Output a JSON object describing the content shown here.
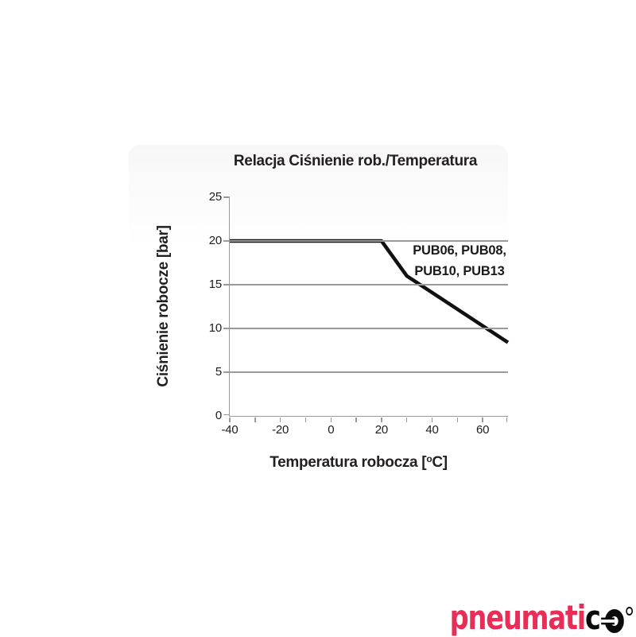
{
  "chart": {
    "title": "Relacja Ciśnienie rob./Temperatura",
    "x_axis_label_pre": "Temperatura robocza [",
    "x_axis_label_sup": "o",
    "x_axis_label_post": "C]",
    "y_axis_label": "Ciśnienie robocze [bar]",
    "annotation_line1": "PUB06, PUB08,",
    "annotation_line2": "PUB10, PUB13"
  },
  "chart_data": {
    "type": "line",
    "title": "Relacja Ciśnienie rob./Temperatura",
    "xlabel": "Temperatura robocza [°C]",
    "ylabel": "Ciśnienie robocze [bar]",
    "xlim": [
      -40,
      70
    ],
    "ylim": [
      0,
      25
    ],
    "x_major_ticks": [
      -40,
      -20,
      0,
      20,
      40,
      60
    ],
    "x_tick_labels": [
      "-40",
      "-20",
      "0",
      "20",
      "40",
      "60"
    ],
    "x_minor_ticks": [
      -40,
      -30,
      -20,
      -10,
      0,
      10,
      20,
      30,
      40,
      50,
      60,
      70
    ],
    "y_ticks": [
      25,
      20,
      15,
      10,
      5,
      0
    ],
    "y_tick_labels": [
      "25",
      "20",
      "15",
      "10",
      "5",
      "0"
    ],
    "gridline_values": [
      20,
      15,
      10,
      5
    ],
    "grid": "horizontal",
    "legend_position": "none",
    "series": [
      {
        "name": "PUB06, PUB08, PUB10, PUB13",
        "annotation": "PUB06, PUB08, PUB10, PUB13",
        "points": [
          [
            -40,
            20
          ],
          [
            20,
            20
          ],
          [
            30,
            16
          ],
          [
            70,
            8.4
          ]
        ],
        "color": "#111111",
        "stroke_width": 4.5
      }
    ]
  },
  "logo": {
    "brand": "pneumatico",
    "red_text": "pneumati",
    "black_text": "c"
  },
  "colors": {
    "logo_red": "#e82e56",
    "axis_gray": "#9a9a9a",
    "line_black": "#111111",
    "text": "#231f20"
  }
}
